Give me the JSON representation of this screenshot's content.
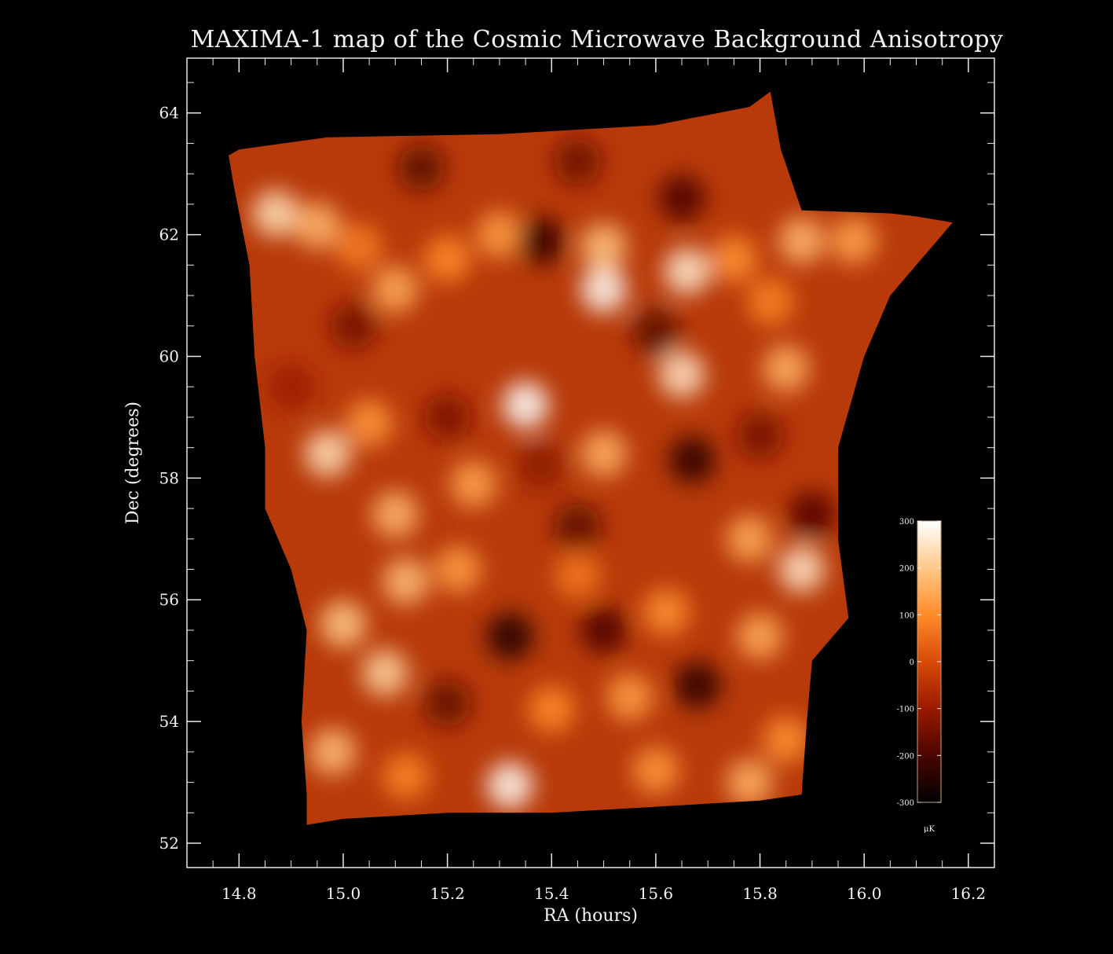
{
  "chart_data": {
    "type": "heatmap",
    "title": "MAXIMA-1 map of the Cosmic Microwave Background Anisotropy",
    "xlabel": "RA (hours)",
    "ylabel": "Dec (degrees)",
    "xlim": [
      14.7,
      16.25
    ],
    "ylim": [
      51.6,
      64.9
    ],
    "xticks": [
      14.8,
      15.0,
      15.2,
      15.4,
      15.6,
      15.8,
      16.0,
      16.2
    ],
    "xtick_labels": [
      "14.8",
      "15.0",
      "15.2",
      "15.4",
      "15.6",
      "15.8",
      "16.0",
      "16.2"
    ],
    "yticks": [
      52,
      54,
      56,
      58,
      60,
      62,
      64
    ],
    "ytick_labels": [
      "52",
      "54",
      "56",
      "58",
      "60",
      "62",
      "64"
    ],
    "colorbar": {
      "ticks": [
        300,
        200,
        100,
        0,
        -100,
        -200,
        -300
      ],
      "tick_labels": [
        "300",
        "200",
        "100",
        "0",
        "-100",
        "-200",
        "-300"
      ],
      "unit": "μK",
      "range": [
        -300,
        300
      ],
      "colors": [
        "#000000",
        "#4a0500",
        "#9a1a00",
        "#d84a08",
        "#ff8c2a",
        "#ffc98a",
        "#ffffff"
      ]
    },
    "footprint_ra_dec": [
      [
        14.78,
        63.3
      ],
      [
        14.8,
        63.4
      ],
      [
        14.97,
        63.6
      ],
      [
        15.3,
        63.65
      ],
      [
        15.6,
        63.8
      ],
      [
        15.78,
        64.1
      ],
      [
        15.82,
        64.35
      ],
      [
        15.84,
        63.4
      ],
      [
        15.88,
        62.4
      ],
      [
        16.05,
        62.35
      ],
      [
        16.1,
        62.3
      ],
      [
        16.17,
        62.2
      ],
      [
        16.15,
        62.0
      ],
      [
        16.05,
        61.0
      ],
      [
        16.0,
        60.0
      ],
      [
        15.95,
        58.5
      ],
      [
        15.95,
        57.0
      ],
      [
        15.97,
        55.7
      ],
      [
        15.9,
        55.0
      ],
      [
        15.89,
        54.0
      ],
      [
        15.88,
        52.8
      ],
      [
        15.8,
        52.7
      ],
      [
        15.6,
        52.6
      ],
      [
        15.4,
        52.5
      ],
      [
        15.2,
        52.5
      ],
      [
        15.0,
        52.4
      ],
      [
        14.93,
        52.3
      ],
      [
        14.93,
        52.8
      ],
      [
        14.92,
        54.0
      ],
      [
        14.93,
        55.5
      ],
      [
        14.9,
        56.5
      ],
      [
        14.85,
        57.5
      ],
      [
        14.85,
        58.5
      ],
      [
        14.83,
        60.0
      ],
      [
        14.82,
        61.5
      ],
      [
        14.79,
        62.8
      ]
    ],
    "features": [
      {
        "ra": 14.87,
        "dec": 62.35,
        "value": 240
      },
      {
        "ra": 14.95,
        "dec": 62.15,
        "value": 170
      },
      {
        "ra": 15.03,
        "dec": 61.8,
        "value": 80
      },
      {
        "ra": 15.1,
        "dec": 61.1,
        "value": 150
      },
      {
        "ra": 15.2,
        "dec": 61.6,
        "value": 100
      },
      {
        "ra": 15.3,
        "dec": 62.0,
        "value": 130
      },
      {
        "ra": 15.38,
        "dec": 61.9,
        "value": -230
      },
      {
        "ra": 15.5,
        "dec": 61.1,
        "value": 290
      },
      {
        "ra": 15.5,
        "dec": 61.8,
        "value": 190
      },
      {
        "ra": 15.66,
        "dec": 61.4,
        "value": 260
      },
      {
        "ra": 15.75,
        "dec": 61.6,
        "value": 110
      },
      {
        "ra": 15.88,
        "dec": 61.9,
        "value": 170
      },
      {
        "ra": 15.98,
        "dec": 61.9,
        "value": 140
      },
      {
        "ra": 15.15,
        "dec": 63.1,
        "value": -180
      },
      {
        "ra": 15.45,
        "dec": 63.2,
        "value": -160
      },
      {
        "ra": 15.65,
        "dec": 62.6,
        "value": -200
      },
      {
        "ra": 15.02,
        "dec": 60.5,
        "value": -150
      },
      {
        "ra": 15.6,
        "dec": 60.4,
        "value": -180
      },
      {
        "ra": 15.82,
        "dec": 60.9,
        "value": 90
      },
      {
        "ra": 15.65,
        "dec": 59.7,
        "value": 250
      },
      {
        "ra": 15.85,
        "dec": 59.8,
        "value": 160
      },
      {
        "ra": 15.35,
        "dec": 59.2,
        "value": 300
      },
      {
        "ra": 15.2,
        "dec": 59.0,
        "value": -140
      },
      {
        "ra": 14.97,
        "dec": 58.4,
        "value": 240
      },
      {
        "ra": 15.05,
        "dec": 58.9,
        "value": 120
      },
      {
        "ra": 14.9,
        "dec": 59.5,
        "value": -100
      },
      {
        "ra": 15.1,
        "dec": 57.4,
        "value": 170
      },
      {
        "ra": 15.25,
        "dec": 57.9,
        "value": 140
      },
      {
        "ra": 15.38,
        "dec": 58.2,
        "value": -120
      },
      {
        "ra": 15.5,
        "dec": 58.4,
        "value": 160
      },
      {
        "ra": 15.67,
        "dec": 58.3,
        "value": -240
      },
      {
        "ra": 15.8,
        "dec": 58.7,
        "value": -150
      },
      {
        "ra": 15.9,
        "dec": 57.4,
        "value": -190
      },
      {
        "ra": 15.88,
        "dec": 56.5,
        "value": 250
      },
      {
        "ra": 15.78,
        "dec": 57.0,
        "value": 150
      },
      {
        "ra": 15.45,
        "dec": 57.2,
        "value": -180
      },
      {
        "ra": 15.12,
        "dec": 56.3,
        "value": 180
      },
      {
        "ra": 15.22,
        "dec": 56.5,
        "value": 130
      },
      {
        "ra": 15.0,
        "dec": 55.6,
        "value": 200
      },
      {
        "ra": 15.32,
        "dec": 55.4,
        "value": -260
      },
      {
        "ra": 15.5,
        "dec": 55.5,
        "value": -200
      },
      {
        "ra": 15.45,
        "dec": 56.4,
        "value": 70
      },
      {
        "ra": 15.62,
        "dec": 55.8,
        "value": 110
      },
      {
        "ra": 15.68,
        "dec": 54.6,
        "value": -240
      },
      {
        "ra": 15.8,
        "dec": 55.4,
        "value": 150
      },
      {
        "ra": 15.08,
        "dec": 54.8,
        "value": 220
      },
      {
        "ra": 15.2,
        "dec": 54.3,
        "value": -170
      },
      {
        "ra": 15.4,
        "dec": 54.2,
        "value": 100
      },
      {
        "ra": 15.55,
        "dec": 54.4,
        "value": 130
      },
      {
        "ra": 15.85,
        "dec": 53.7,
        "value": 110
      },
      {
        "ra": 14.98,
        "dec": 53.5,
        "value": 180
      },
      {
        "ra": 15.12,
        "dec": 53.1,
        "value": 90
      },
      {
        "ra": 15.32,
        "dec": 52.95,
        "value": 290
      },
      {
        "ra": 15.6,
        "dec": 53.2,
        "value": 120
      },
      {
        "ra": 15.78,
        "dec": 53.0,
        "value": 160
      }
    ]
  }
}
